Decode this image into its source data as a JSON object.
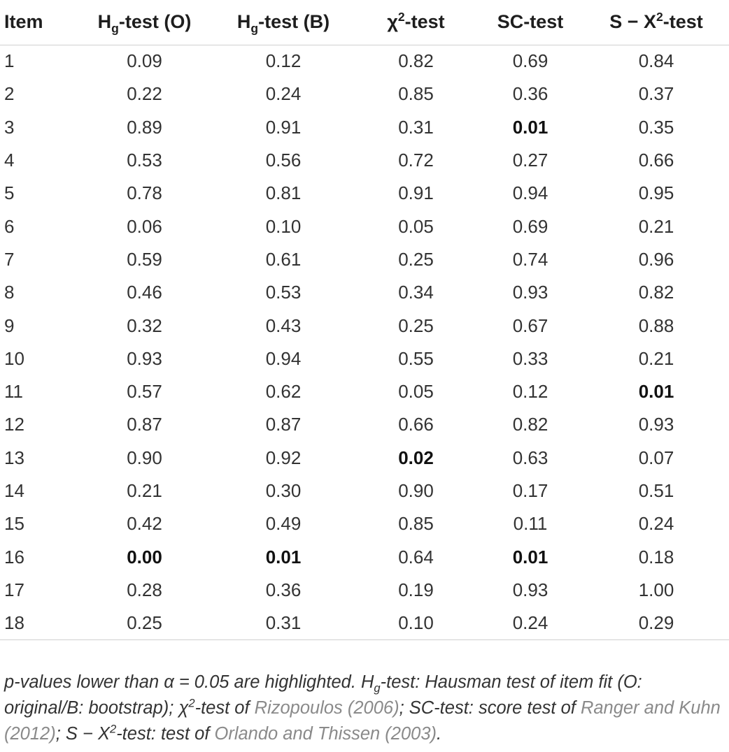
{
  "table": {
    "headers": [
      {
        "main": "Item",
        "sub": "",
        "sup": "",
        "rest": ""
      },
      {
        "main": "H",
        "sub": "g",
        "sup": "",
        "rest": "-test (O)"
      },
      {
        "main": "H",
        "sub": "g",
        "sup": "",
        "rest": "-test (B)"
      },
      {
        "main": "χ",
        "sub": "",
        "sup": "2",
        "rest": "-test"
      },
      {
        "main": "SC-test",
        "sub": "",
        "sup": "",
        "rest": ""
      },
      {
        "main": "S − X",
        "sub": "",
        "sup": "2",
        "rest": "-test"
      }
    ],
    "rows": [
      [
        "1",
        "0.09",
        "0.12",
        "0.82",
        "0.69",
        "0.84"
      ],
      [
        "2",
        "0.22",
        "0.24",
        "0.85",
        "0.36",
        "0.37"
      ],
      [
        "3",
        "0.89",
        "0.91",
        "0.31",
        "0.01",
        "0.35"
      ],
      [
        "4",
        "0.53",
        "0.56",
        "0.72",
        "0.27",
        "0.66"
      ],
      [
        "5",
        "0.78",
        "0.81",
        "0.91",
        "0.94",
        "0.95"
      ],
      [
        "6",
        "0.06",
        "0.10",
        "0.05",
        "0.69",
        "0.21"
      ],
      [
        "7",
        "0.59",
        "0.61",
        "0.25",
        "0.74",
        "0.96"
      ],
      [
        "8",
        "0.46",
        "0.53",
        "0.34",
        "0.93",
        "0.82"
      ],
      [
        "9",
        "0.32",
        "0.43",
        "0.25",
        "0.67",
        "0.88"
      ],
      [
        "10",
        "0.93",
        "0.94",
        "0.55",
        "0.33",
        "0.21"
      ],
      [
        "11",
        "0.57",
        "0.62",
        "0.05",
        "0.12",
        "0.01"
      ],
      [
        "12",
        "0.87",
        "0.87",
        "0.66",
        "0.82",
        "0.93"
      ],
      [
        "13",
        "0.90",
        "0.92",
        "0.02",
        "0.63",
        "0.07"
      ],
      [
        "14",
        "0.21",
        "0.30",
        "0.90",
        "0.17",
        "0.51"
      ],
      [
        "15",
        "0.42",
        "0.49",
        "0.85",
        "0.11",
        "0.24"
      ],
      [
        "16",
        "0.00",
        "0.01",
        "0.64",
        "0.01",
        "0.18"
      ],
      [
        "17",
        "0.28",
        "0.36",
        "0.19",
        "0.93",
        "1.00"
      ],
      [
        "18",
        "0.25",
        "0.31",
        "0.10",
        "0.24",
        "0.29"
      ]
    ],
    "bold_cells": [
      [
        2,
        4
      ],
      [
        10,
        5
      ],
      [
        12,
        3
      ],
      [
        15,
        1
      ],
      [
        15,
        2
      ],
      [
        15,
        4
      ]
    ]
  },
  "footnote": {
    "t1": "p-values lower than α = 0.05 are highlighted. H",
    "t1_sub": "g",
    "t2": "-test: Hausman test of item fit (O: original/B: bootstrap); χ",
    "t2_sup": "2",
    "t3": "-test of ",
    "ref1": "Rizopoulos (2006)",
    "t4": "; SC-test: score test of ",
    "ref2": "Ranger and Kuhn (2012)",
    "t5": "; S − X",
    "t5_sup": "2",
    "t6": "-test: test of ",
    "ref3": "Orlando and Thissen (2003)",
    "t7": "."
  },
  "colors": {
    "text": "#333333",
    "header_text": "#1e1e1e",
    "rule": "#cfcfcf",
    "reference_link": "#8a8a8a"
  }
}
